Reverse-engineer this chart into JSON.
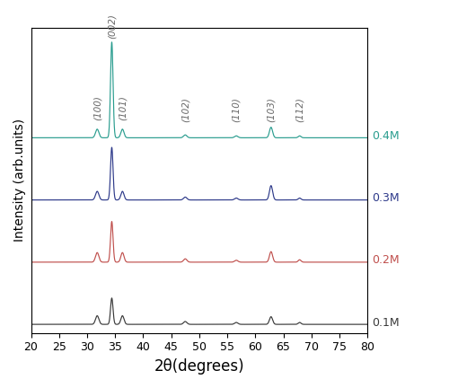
{
  "xlabel": "2θ(degrees)",
  "ylabel": "Intensity (arb.units)",
  "xlim": [
    20,
    80
  ],
  "x_ticks": [
    20,
    25,
    30,
    35,
    40,
    45,
    50,
    55,
    60,
    65,
    70,
    75,
    80
  ],
  "colors": [
    "#3a3a3a",
    "#c0504d",
    "#2e3a8a",
    "#2a9d8f"
  ],
  "labels": [
    "0.1M",
    "0.2M",
    "0.3M",
    "0.4M"
  ],
  "offsets": [
    0.0,
    0.13,
    0.26,
    0.39
  ],
  "peak_positions": {
    "(100)": 31.8,
    "(002)": 34.4,
    "(101)": 36.3,
    "(102)": 47.5,
    "(110)": 56.6,
    "(103)": 62.8,
    "(112)": 67.9
  },
  "peak_widths": {
    "(100)": 0.3,
    "(002)": 0.22,
    "(101)": 0.28,
    "(102)": 0.3,
    "(110)": 0.3,
    "(103)": 0.28,
    "(112)": 0.25
  },
  "peak_heights_per_conc": {
    "0.1M": {
      "(100)": 0.018,
      "(002)": 0.055,
      "(101)": 0.018,
      "(102)": 0.006,
      "(110)": 0.004,
      "(103)": 0.016,
      "(112)": 0.004
    },
    "0.2M": {
      "(100)": 0.02,
      "(002)": 0.085,
      "(101)": 0.02,
      "(102)": 0.007,
      "(110)": 0.004,
      "(103)": 0.022,
      "(112)": 0.005
    },
    "0.3M": {
      "(100)": 0.018,
      "(002)": 0.11,
      "(101)": 0.018,
      "(102)": 0.006,
      "(110)": 0.004,
      "(103)": 0.03,
      "(112)": 0.004
    },
    "0.4M": {
      "(100)": 0.018,
      "(002)": 0.2,
      "(101)": 0.018,
      "(102)": 0.006,
      "(110)": 0.004,
      "(103)": 0.022,
      "(112)": 0.004
    }
  },
  "label_fontsize": 9,
  "peak_label_fontsize": 7.5,
  "peak_label_color": "#666666",
  "background_color": "#ffffff",
  "figsize": [
    5.0,
    4.32
  ],
  "dpi": 100
}
